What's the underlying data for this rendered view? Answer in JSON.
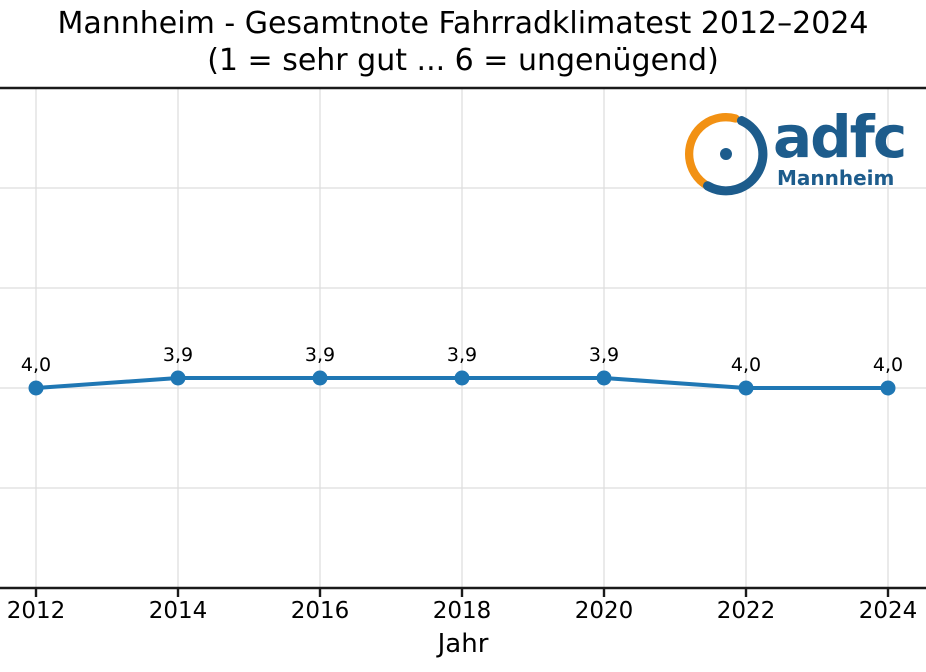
{
  "chart_data": {
    "type": "line",
    "title": "Mannheim - Gesamtnote Fahrradklimatest 2012–2024",
    "subtitle": "(1 = sehr gut ... 6 = ungenügend)",
    "xlabel": "Jahr",
    "ylabel": "",
    "x": [
      2012,
      2014,
      2016,
      2018,
      2020,
      2022,
      2024
    ],
    "xticks": [
      "2012",
      "2014",
      "2016",
      "2018",
      "2020",
      "2022",
      "2024"
    ],
    "values": [
      4.0,
      3.9,
      3.9,
      3.9,
      3.9,
      4.0,
      4.0
    ],
    "point_labels": [
      "4,0",
      "3,9",
      "3,9",
      "3,9",
      "3,9",
      "4,0",
      "4,0"
    ],
    "ylim": [
      1,
      6
    ],
    "y_inverted": true,
    "grid": true,
    "legend": "none",
    "line_color": "#1f77b4",
    "marker": "circle",
    "grid_color": "#dedede",
    "axis_color": "#1a1a1a"
  },
  "logo": {
    "brand": "adfc",
    "city": "Mannheim",
    "orange": "#f29113",
    "blue": "#1d5c8c"
  }
}
